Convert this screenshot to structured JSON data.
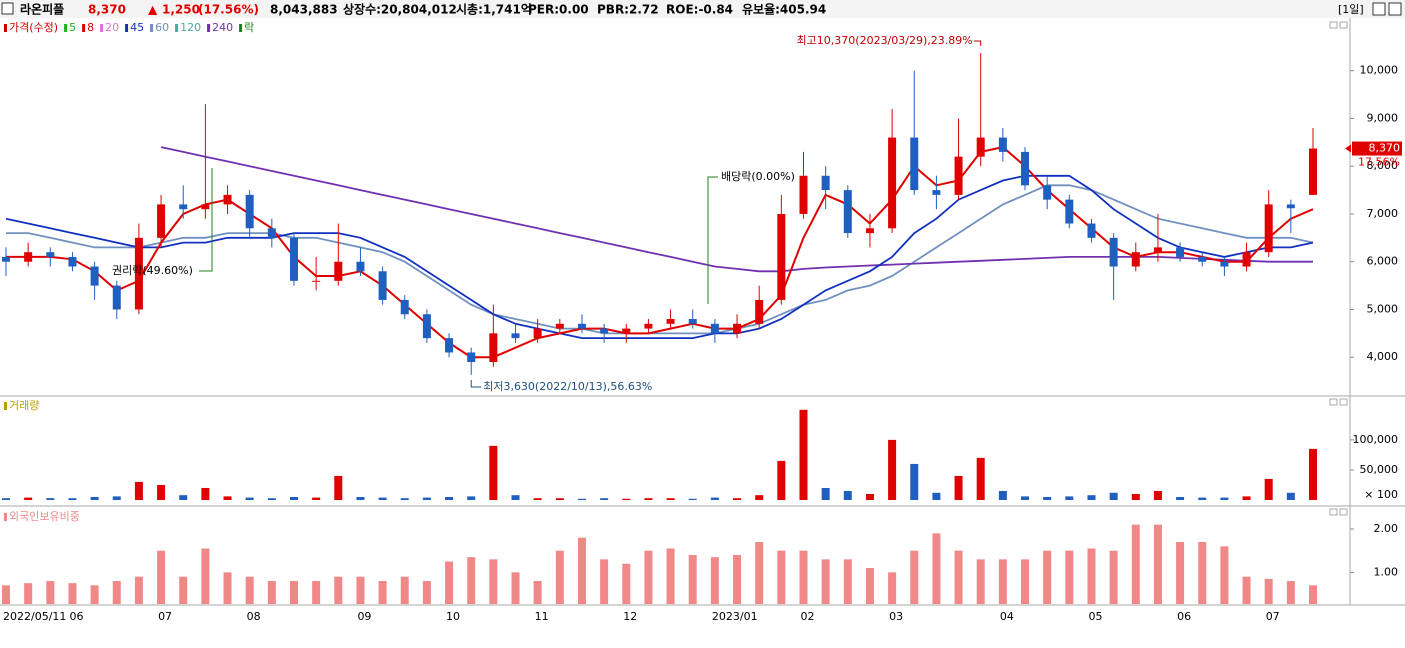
{
  "header": {
    "name": "라온피플",
    "price": "8,370",
    "arrow": "▲",
    "change": "1,250",
    "change_pct": "(17.56%)",
    "volume": "8,043,883",
    "listed": "상장수:20,804,012",
    "market_cap": "시총:1,741억",
    "per": "PER:0.00",
    "pbr": "PBR:2.72",
    "roe": "ROE:-0.84",
    "reserve": "유보율:405.94",
    "period": "[1일]",
    "tag_pct": "17.56%"
  },
  "chart_data": [
    {
      "type": "candlestick",
      "legend": [
        {
          "label": "가격(수정)",
          "color": "#d00000"
        },
        {
          "label": "5",
          "color": "#20b020"
        },
        {
          "label": "8",
          "color": "#e00000"
        },
        {
          "label": "20",
          "color": "#e070e0"
        },
        {
          "label": "45",
          "color": "#1030c0"
        },
        {
          "label": "60",
          "color": "#7090c0"
        },
        {
          "label": "120",
          "color": "#40b0a0"
        },
        {
          "label": "240",
          "color": "#7030b0"
        },
        {
          "label": "락",
          "color": "#208020"
        }
      ],
      "categories": [
        "2022/05/11",
        null,
        null,
        "06",
        null,
        null,
        null,
        "07",
        null,
        null,
        null,
        "08",
        null,
        null,
        null,
        null,
        "09",
        null,
        null,
        null,
        "10",
        null,
        null,
        null,
        "11",
        null,
        null,
        null,
        "12",
        null,
        null,
        null,
        "2023/01",
        null,
        null,
        null,
        "02",
        null,
        null,
        null,
        "03",
        null,
        null,
        null,
        null,
        "04",
        null,
        null,
        null,
        "05",
        null,
        null,
        null,
        "06",
        null,
        null,
        null,
        "07",
        null,
        null
      ],
      "open": [
        6100,
        6000,
        6200,
        6100,
        5900,
        5500,
        5000,
        6500,
        7200,
        7100,
        7200,
        7400,
        6700,
        6500,
        5600,
        5600,
        6000,
        5800,
        5200,
        4900,
        4400,
        4100,
        3900,
        4500,
        4400,
        4600,
        4700,
        4600,
        4500,
        4600,
        4700,
        4800,
        4700,
        4500,
        4700,
        5200,
        7000,
        7800,
        7500,
        6600,
        6700,
        8600,
        7500,
        7400,
        8200,
        8600,
        8300,
        7600,
        7300,
        6800,
        6500,
        5900,
        6200,
        6300,
        6100,
        6000,
        5900,
        6200,
        7200,
        7400
      ],
      "high": [
        6300,
        6400,
        6300,
        6200,
        6000,
        5600,
        6800,
        7400,
        7600,
        9300,
        7600,
        7500,
        6900,
        6600,
        6100,
        6800,
        6300,
        5900,
        5300,
        5000,
        4500,
        4200,
        5100,
        4700,
        4800,
        4800,
        4900,
        4700,
        4700,
        4800,
        5000,
        5000,
        4800,
        4900,
        5500,
        7400,
        8300,
        8000,
        7600,
        7000,
        9200,
        10000,
        7800,
        9000,
        10370,
        8800,
        8400,
        7800,
        7400,
        6900,
        6600,
        6400,
        7000,
        6400,
        6200,
        6100,
        6400,
        7500,
        7300,
        8800
      ],
      "low": [
        5700,
        5900,
        5900,
        5800,
        5200,
        4800,
        4900,
        6300,
        6900,
        6900,
        7000,
        6500,
        6300,
        5500,
        5400,
        5500,
        5700,
        5100,
        4800,
        4300,
        4000,
        3630,
        3800,
        4300,
        4300,
        4500,
        4500,
        4300,
        4300,
        4500,
        4600,
        4600,
        4300,
        4400,
        4600,
        5100,
        6900,
        7100,
        6500,
        6300,
        6600,
        7400,
        7100,
        7300,
        8000,
        8100,
        7500,
        7100,
        6700,
        6400,
        5200,
        5800,
        6000,
        6000,
        5900,
        5700,
        5800,
        6100,
        6600,
        7400
      ],
      "close": [
        6000,
        6200,
        6100,
        5900,
        5500,
        5000,
        6500,
        7200,
        7100,
        7200,
        7400,
        6700,
        6500,
        5600,
        5600,
        6000,
        5800,
        5200,
        4900,
        4400,
        4100,
        3900,
        4500,
        4400,
        4600,
        4700,
        4600,
        4500,
        4600,
        4700,
        4800,
        4700,
        4500,
        4700,
        5200,
        7000,
        7800,
        7500,
        6600,
        6700,
        8600,
        7500,
        7400,
        8200,
        8600,
        8300,
        7600,
        7300,
        6800,
        6500,
        5900,
        6200,
        6300,
        6100,
        6000,
        5900,
        6200,
        7200,
        7120,
        8370
      ],
      "up_color": "#e00000",
      "down_color": "#1f5fbf",
      "moving_averages": [
        {
          "color": "#7090c0",
          "values": [
            6600,
            6600,
            6500,
            6400,
            6300,
            6300,
            6300,
            6400,
            6500,
            6500,
            6600,
            6600,
            6600,
            6500,
            6500,
            6400,
            6300,
            6200,
            6000,
            5700,
            5400,
            5100,
            4900,
            4800,
            4700,
            4600,
            4600,
            4500,
            4500,
            4500,
            4500,
            4500,
            4500,
            4600,
            4700,
            4900,
            5100,
            5200,
            5400,
            5500,
            5700,
            6000,
            6300,
            6600,
            6900,
            7200,
            7400,
            7600,
            7600,
            7500,
            7300,
            7100,
            6900,
            6800,
            6700,
            6600,
            6500,
            6500,
            6500,
            6400
          ]
        },
        {
          "color": "#7030b0",
          "values": [
            null,
            null,
            null,
            null,
            null,
            null,
            null,
            8400,
            8300,
            8200,
            8100,
            8000,
            7900,
            7800,
            7700,
            7600,
            7500,
            7400,
            7300,
            7200,
            7100,
            7000,
            6900,
            6800,
            6700,
            6600,
            6500,
            6400,
            6300,
            6200,
            6100,
            6000,
            5900,
            5850,
            5800,
            5800,
            5850,
            5880,
            5900,
            5920,
            5940,
            5960,
            5980,
            6000,
            6020,
            6040,
            6060,
            6080,
            6100,
            6100,
            6100,
            6100,
            6100,
            6080,
            6060,
            6040,
            6020,
            6000,
            6000,
            6000
          ]
        },
        {
          "color": "#1030c0",
          "values": [
            6900,
            6800,
            6700,
            6600,
            6500,
            6400,
            6300,
            6300,
            6400,
            6400,
            6500,
            6500,
            6500,
            6600,
            6600,
            6600,
            6500,
            6300,
            6100,
            5800,
            5500,
            5200,
            4900,
            4700,
            4600,
            4500,
            4400,
            4400,
            4400,
            4400,
            4400,
            4400,
            4500,
            4500,
            4600,
            4800,
            5100,
            5400,
            5600,
            5800,
            6100,
            6600,
            6900,
            7300,
            7500,
            7700,
            7800,
            7800,
            7800,
            7500,
            7100,
            6800,
            6500,
            6300,
            6200,
            6100,
            6200,
            6300,
            6300,
            6400
          ]
        },
        {
          "color": "#e00000",
          "values": [
            6100,
            6100,
            6100,
            6050,
            5800,
            5400,
            5600,
            6400,
            7000,
            7200,
            7300,
            7000,
            6700,
            6100,
            5700,
            5700,
            5800,
            5500,
            5100,
            4700,
            4300,
            4000,
            4000,
            4200,
            4400,
            4500,
            4600,
            4600,
            4500,
            4500,
            4600,
            4700,
            4600,
            4600,
            4800,
            5300,
            6500,
            7400,
            7200,
            6800,
            7300,
            8000,
            7600,
            7700,
            8300,
            8400,
            8000,
            7500,
            7100,
            6700,
            6300,
            6100,
            6200,
            6200,
            6100,
            6000,
            6000,
            6500,
            6900,
            7100
          ]
        }
      ],
      "ylim": [
        3230,
        11020
      ],
      "yticks": [
        {
          "value": 4000,
          "label": "4,000"
        },
        {
          "value": 5000,
          "label": "5,000"
        },
        {
          "value": 6000,
          "label": "6,000"
        },
        {
          "value": 7000,
          "label": "7,000"
        },
        {
          "value": 8000,
          "label": "8,000"
        },
        {
          "value": 9000,
          "label": "9,000"
        },
        {
          "value": 10000,
          "label": "10,000"
        }
      ],
      "annotations": {
        "high": "최고10,370(2023/03/29),23.89%",
        "low": "최저3,630(2022/10/13),56.63%",
        "dividend": "배당락(0.00%)",
        "rights": "권리락(49.60%)"
      }
    },
    {
      "type": "bar",
      "title": "거래량",
      "values": [
        3000,
        4000,
        3000,
        3000,
        5000,
        6000,
        30000,
        25000,
        8000,
        20000,
        6000,
        4000,
        3000,
        5000,
        4000,
        40000,
        5000,
        4000,
        3000,
        4000,
        5000,
        6000,
        90000,
        8000,
        3000,
        3000,
        2000,
        3000,
        2000,
        3000,
        3000,
        2000,
        4000,
        3000,
        8000,
        65000,
        150000,
        20000,
        15000,
        10000,
        100000,
        60000,
        12000,
        40000,
        70000,
        15000,
        6000,
        5000,
        6000,
        8000,
        12000,
        10000,
        15000,
        5000,
        4000,
        4000,
        6000,
        35000,
        12000,
        85000
      ],
      "ylim": [
        0,
        158000
      ],
      "yticks": [
        {
          "value": 50000,
          "label": "50,000"
        },
        {
          "value": 100000,
          "label": "100,000"
        }
      ],
      "y_unit": "× 100"
    },
    {
      "type": "bar",
      "title": "외국인보유비중",
      "color": "#f08888",
      "values": [
        0.7,
        0.75,
        0.8,
        0.75,
        0.7,
        0.8,
        0.9,
        1.5,
        0.9,
        1.55,
        1.0,
        0.9,
        0.8,
        0.8,
        0.8,
        0.9,
        0.9,
        0.8,
        0.9,
        0.8,
        1.25,
        1.35,
        1.3,
        1.0,
        0.8,
        1.5,
        1.8,
        1.3,
        1.2,
        1.5,
        1.55,
        1.4,
        1.35,
        1.4,
        1.7,
        1.5,
        1.5,
        1.3,
        1.3,
        1.1,
        1.0,
        1.5,
        1.9,
        1.5,
        1.3,
        1.3,
        1.3,
        1.5,
        1.5,
        1.55,
        1.5,
        2.1,
        2.1,
        1.7,
        1.7,
        1.6,
        0.9,
        0.85,
        0.8,
        0.7
      ],
      "ylim": [
        0.27,
        2.3
      ],
      "yticks": [
        {
          "value": 1,
          "label": "1.00"
        },
        {
          "value": 2,
          "label": "2.00"
        }
      ]
    }
  ]
}
